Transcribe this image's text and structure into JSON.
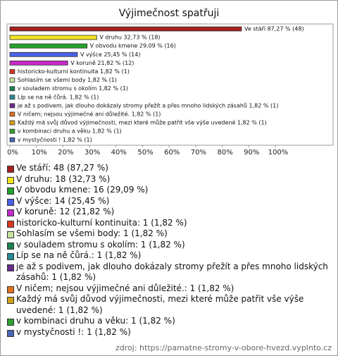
{
  "chart_data": {
    "type": "bar",
    "orientation": "horizontal",
    "title": "Výjimečnost spatřuji",
    "categories": [
      "Ve stáří",
      "V druhu",
      "V obvodu kmene",
      "V výšce",
      "V koruně",
      "historicko-kulturní kontinuita",
      "Sohlasím se všemi body",
      "v souladem  stromu s  okolím",
      "Líp se na ně čůrá.",
      "je až s podivem, jak dlouho dokázaly stromy přežít a přes mnoho lidských zásahů",
      "V ničem; nejsou výjimečné ani důležité.",
      "Každý má svůj důvod výjimečnosti, mezi které může patřit  vše výše uvedené",
      "v kombinaci druhu a věku",
      "v mystyčnosti !"
    ],
    "values": [
      87.27,
      32.73,
      29.09,
      25.45,
      21.82,
      1.82,
      1.82,
      1.82,
      1.82,
      1.82,
      1.82,
      1.82,
      1.82,
      1.82
    ],
    "value_labels": [
      "Ve stáří 87,27 % (48)",
      "V druhu 32,73 % (18)",
      "V obvodu kmene 29,09 % (16)",
      "V výšce 25,45 % (14)",
      "V koruně 21,82 % (12)",
      "historicko-kulturní kontinuita 1,82 % (1)",
      "Sohlasím se všemi body 1,82 % (1)",
      "v souladem  stromu s  okolím 1,82 % (1)",
      "Líp se na ně čůrá. 1,82 % (1)",
      "je až s podivem, jak dlouho dokázaly stromy přežít a přes mnoho lidských zásahů 1,82 % (1)",
      "V ničem; nejsou výjimečné ani důležité. 1,82 % (1)",
      "Každý má svůj důvod výjimečnosti, mezi které může patřit  vše výše uvedené 1,82 % (1)",
      "v kombinaci druhu a věku 1,82 % (1)",
      "v mystyčnosti ! 1,82 % (1)"
    ],
    "legend_labels": [
      "Ve stáří: 48 (87,27 %)",
      "V druhu: 18 (32,73 %)",
      "V obvodu kmene: 16 (29,09 %)",
      "V výšce: 14 (25,45 %)",
      "V koruně: 12 (21,82 %)",
      "historicko-kulturní kontinuita: 1 (1,82 %)",
      "Sohlasím se všemi body: 1 (1,82 %)",
      "v souladem  stromu s  okolím: 1 (1,82 %)",
      "Líp se na ně čůrá.: 1 (1,82 %)",
      "je až s podivem, jak dlouho dokázaly stromy přežít a přes mnoho lidských zásahů: 1 (1,82 %)",
      "V ničem; nejsou výjimečné ani důležité.: 1 (1,82 %)",
      "Každý má svůj důvod výjimečnosti, mezi které může patřit  vše výše uvedené: 1 (1,82 %)",
      "v kombinaci druhu a věku: 1 (1,82 %)",
      "v mystyčnosti !: 1 (1,82 %)"
    ],
    "colors": [
      "#a3201c",
      "#f2e41e",
      "#23a32a",
      "#4a62e6",
      "#c42ac8",
      "#d9361f",
      "#c6e3a2",
      "#1c8050",
      "#2a8a96",
      "#6b2c8c",
      "#e0711e",
      "#d3a01c",
      "#2f9e2f",
      "#4a66b4"
    ],
    "xlim": [
      0,
      100
    ],
    "xticks": [
      {
        "value": 0,
        "label": "0%"
      },
      {
        "value": 10,
        "label": "10%"
      },
      {
        "value": 20,
        "label": "20%"
      },
      {
        "value": 30,
        "label": "30%"
      },
      {
        "value": 40,
        "label": "40%"
      },
      {
        "value": 50,
        "label": "50%"
      },
      {
        "value": 60,
        "label": "60%"
      },
      {
        "value": 70,
        "label": "70%"
      },
      {
        "value": 80,
        "label": "80%"
      },
      {
        "value": 90,
        "label": "90%"
      },
      {
        "value": 100,
        "label": "100%"
      }
    ],
    "source": "zdroj: https://pamatne-stromy-v-obore-hvezd.vyplnto.cz"
  }
}
